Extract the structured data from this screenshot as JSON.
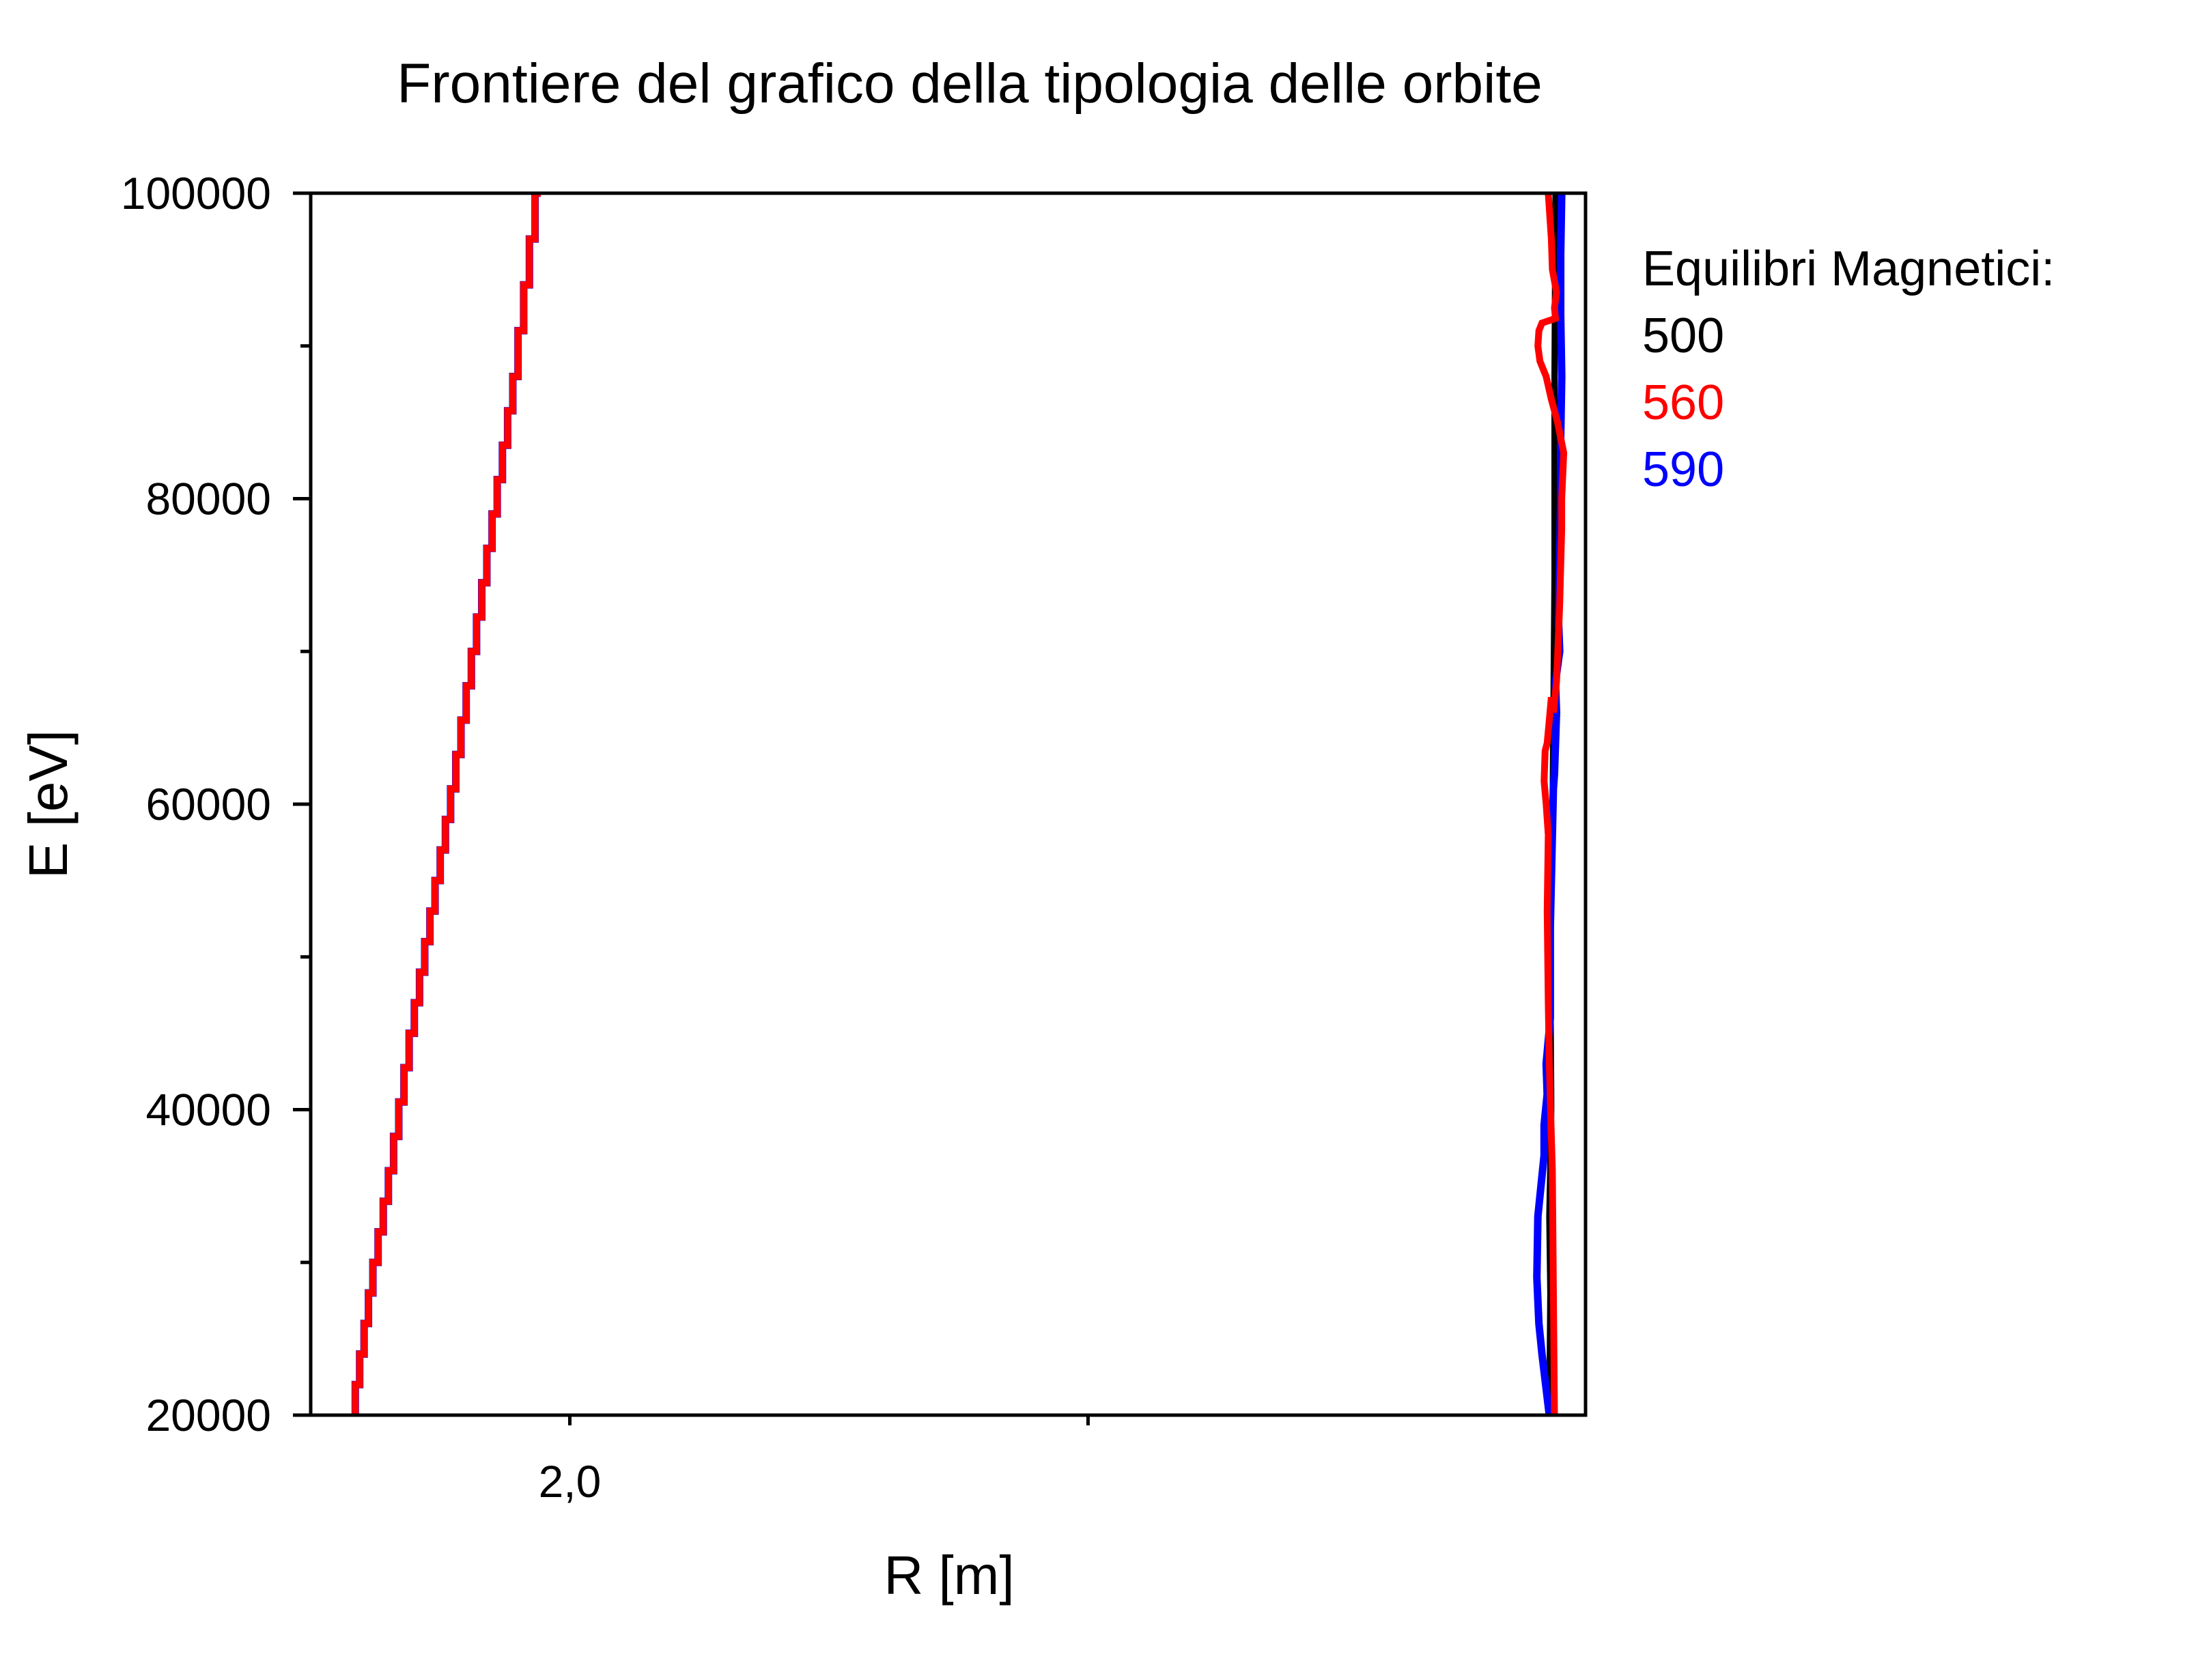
{
  "chart_data": {
    "type": "line",
    "title": "Frontiere del grafico della tipologia delle orbite",
    "xlabel": "R [m]",
    "ylabel": "E [eV]",
    "xlim": [
      1.75,
      2.98
    ],
    "ylim": [
      20000,
      100000
    ],
    "y_ticks": [
      20000,
      40000,
      60000,
      80000,
      100000
    ],
    "y_tick_labels": [
      "20000",
      "40000",
      "60000",
      "80000",
      "100000"
    ],
    "y_minor_ticks": [
      30000,
      50000,
      70000,
      90000
    ],
    "x_ticks": [
      2.0,
      2.5
    ],
    "x_tick_labels": [
      "2,0",
      ""
    ],
    "grid": false,
    "legend": {
      "title": "Equilibri Magnetici:",
      "position": "right",
      "entries": [
        {
          "label": "500",
          "color": "#000000"
        },
        {
          "label": "560",
          "color": "#ff0000"
        },
        {
          "label": "590",
          "color": "#0000ff"
        }
      ]
    },
    "series": [
      {
        "name": "500",
        "color": "#000000",
        "curves": [
          {
            "step": true,
            "x": [
              1.793,
              1.81,
              1.83,
              1.85,
              1.87,
              1.89,
              1.91,
              1.93,
              1.95,
              1.972
            ],
            "y": [
              20000,
              28000,
              36000,
              45000,
              53000,
              61000,
              70000,
              79000,
              88000,
              100000
            ]
          },
          {
            "step": false,
            "x": [
              2.945,
              2.946,
              2.945,
              2.947,
              2.946,
              2.948,
              2.949,
              2.95,
              2.95,
              2.951
            ],
            "y": [
              20000,
              28000,
              33000,
              40000,
              50000,
              58000,
              66000,
              75000,
              88000,
              100000
            ]
          }
        ]
      },
      {
        "name": "590",
        "color": "#0000ff",
        "curves": [
          {
            "step": true,
            "x": [
              1.793,
              1.81,
              1.83,
              1.85,
              1.87,
              1.89,
              1.91,
              1.93,
              1.95,
              1.972
            ],
            "y": [
              20000,
              28000,
              36000,
              45000,
              53000,
              61000,
              70000,
              79000,
              88000,
              100000
            ]
          },
          {
            "step": false,
            "x": [
              2.945,
              2.938,
              2.935,
              2.933,
              2.934,
              2.937,
              2.94,
              2.94,
              2.943,
              2.942,
              2.946,
              2.946,
              2.948,
              2.949,
              2.95,
              2.952,
              2.951,
              2.955,
              2.954,
              2.956,
              2.956,
              2.957,
              2.956,
              2.956,
              2.957
            ],
            "y": [
              20000,
              24000,
              26000,
              29000,
              33000,
              35000,
              37000,
              39000,
              41000,
              43000,
              46000,
              52000,
              58000,
              61000,
              62000,
              66000,
              68000,
              70000,
              72000,
              80000,
              84000,
              88000,
              92000,
              96000,
              100000
            ]
          }
        ]
      },
      {
        "name": "560",
        "color": "#ff0000",
        "curves": [
          {
            "step": true,
            "x": [
              1.793,
              1.81,
              1.83,
              1.85,
              1.87,
              1.89,
              1.91,
              1.93,
              1.95,
              1.972
            ],
            "y": [
              20000,
              28000,
              36000,
              45000,
              53000,
              61000,
              70000,
              79000,
              88000,
              100000
            ]
          },
          {
            "step": false,
            "x": [
              2.95,
              2.948,
              2.945,
              2.944,
              2.943,
              2.944,
              2.942,
              2.94,
              2.941,
              2.943,
              2.945,
              2.947,
              2.949,
              2.952,
              2.955,
              2.957,
              2.957,
              2.959,
              2.953,
              2.947,
              2.942,
              2.936,
              2.934,
              2.935,
              2.938,
              2.951,
              2.95,
              2.952,
              2.948,
              2.947,
              2.944
            ],
            "y": [
              20000,
              36000,
              43000,
              47000,
              53000,
              58000,
              60000,
              61500,
              63500,
              64000,
              65500,
              67000,
              66000,
              68000,
              73000,
              78000,
              80000,
              83000,
              85000,
              86500,
              88000,
              89000,
              90000,
              91000,
              91500,
              91800,
              92500,
              93500,
              95000,
              97000,
              100000
            ]
          }
        ]
      }
    ]
  }
}
